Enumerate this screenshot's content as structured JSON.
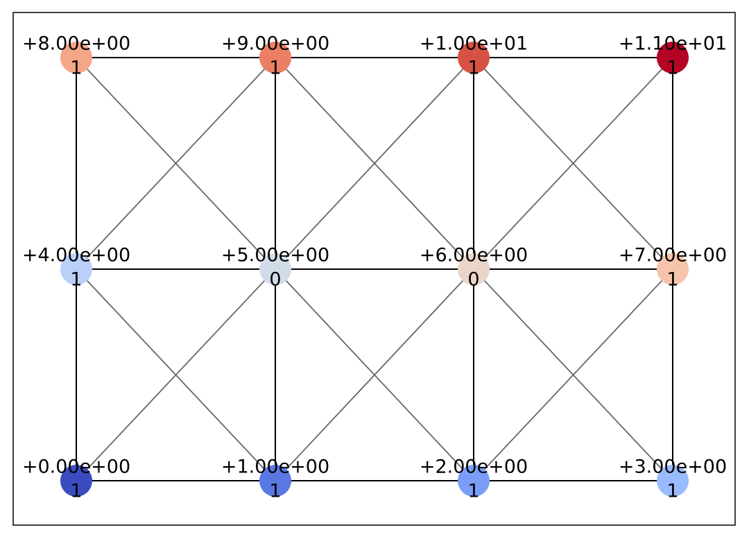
{
  "nodes": [
    {
      "label": "+0.00e+00",
      "tag": "1",
      "color": "#3b4cc0"
    },
    {
      "label": "+1.00e+00",
      "tag": "1",
      "color": "#5a78e4"
    },
    {
      "label": "+2.00e+00",
      "tag": "1",
      "color": "#7a9df8"
    },
    {
      "label": "+3.00e+00",
      "tag": "1",
      "color": "#9abbff"
    },
    {
      "label": "+4.00e+00",
      "tag": "1",
      "color": "#bad0f8"
    },
    {
      "label": "+5.00e+00",
      "tag": "0",
      "color": "#d2dbe8"
    },
    {
      "label": "+6.00e+00",
      "tag": "0",
      "color": "#ead5c9"
    },
    {
      "label": "+7.00e+00",
      "tag": "1",
      "color": "#f6c4aa"
    },
    {
      "label": "+8.00e+00",
      "tag": "1",
      "color": "#f4a688"
    },
    {
      "label": "+9.00e+00",
      "tag": "1",
      "color": "#ec7f63"
    },
    {
      "label": "+1.00e+01",
      "tag": "1",
      "color": "#d65244"
    },
    {
      "label": "+1.10e+01",
      "tag": "1",
      "color": "#b40426"
    }
  ]
}
